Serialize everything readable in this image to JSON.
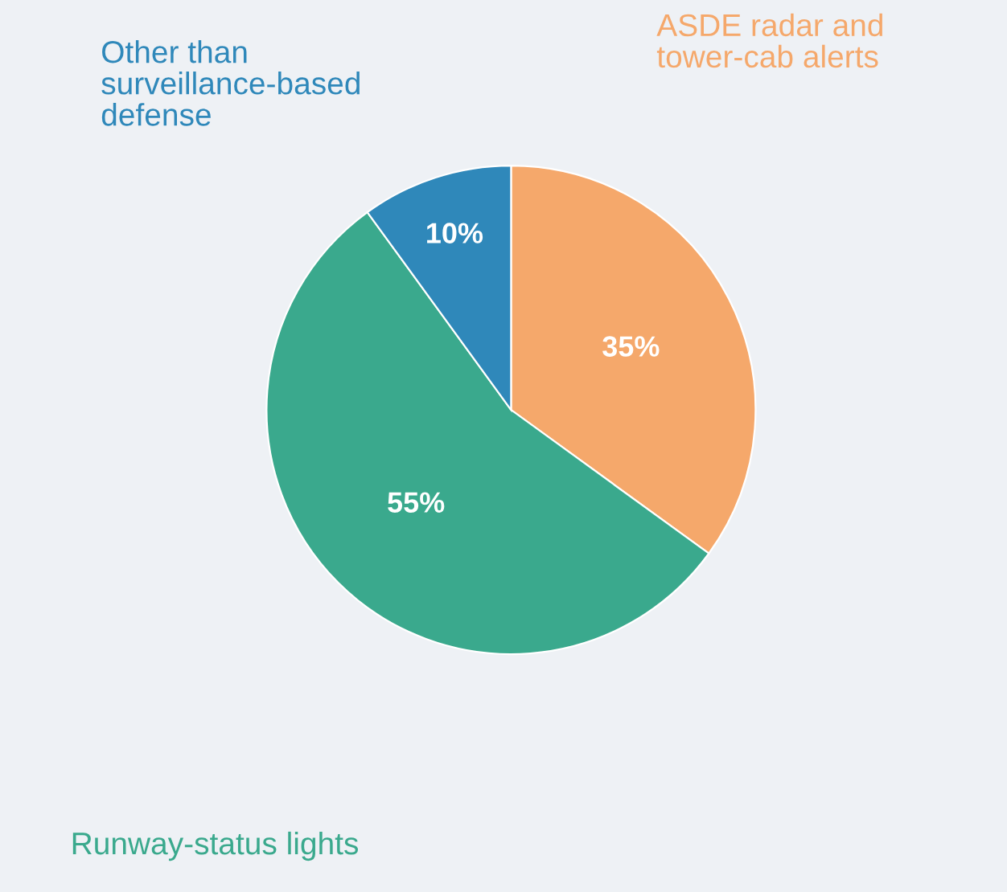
{
  "chart_data": {
    "type": "pie",
    "categories": [
      "ASDE radar and\ntower-cab alerts",
      "Runway-status lights",
      "Other than\nsurveillance-based\ndefense"
    ],
    "values": [
      35,
      55,
      10
    ],
    "value_labels": [
      "35%",
      "55%",
      "10%"
    ],
    "colors": [
      "#f5a86b",
      "#3aa98d",
      "#2f88ba"
    ],
    "legend": false
  }
}
